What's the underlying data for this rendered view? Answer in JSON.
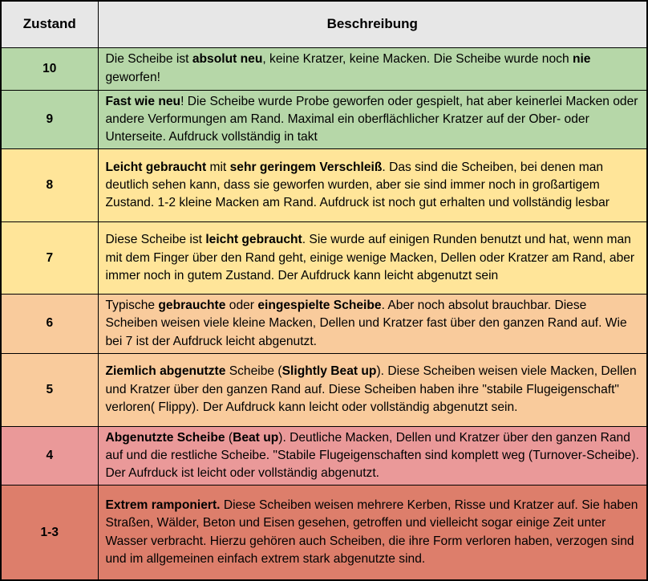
{
  "table": {
    "headers": [
      {
        "label": "Zustand"
      },
      {
        "label": "Beschreibung"
      }
    ],
    "header_bg": "#e7e7e7",
    "border_color": "#000000",
    "text_color": "#000000",
    "rows": [
      {
        "zustand": "10",
        "bg": "#b6d7a8",
        "height": 53,
        "segments": [
          {
            "text": "Die Scheibe ist ",
            "bold": false
          },
          {
            "text": "absolut neu",
            "bold": true
          },
          {
            "text": ", keine Kratzer, keine Macken. Die Scheibe wurde noch ",
            "bold": false
          },
          {
            "text": "nie",
            "bold": true
          },
          {
            "text": " geworfen!",
            "bold": false
          }
        ]
      },
      {
        "zustand": "9",
        "bg": "#b6d7a8",
        "height": 70,
        "segments": [
          {
            "text": "Fast wie neu",
            "bold": true
          },
          {
            "text": "! Die Scheibe wurde Probe geworfen oder gespielt, hat aber keinerlei Macken oder andere Verformungen am Rand. Maximal ein oberflächlicher Kratzer auf der Ober- oder Unterseite. Aufdruck vollständig in takt",
            "bold": false
          }
        ]
      },
      {
        "zustand": "8",
        "bg": "#ffe599",
        "height": 91,
        "segments": [
          {
            "text": "Leicht gebraucht",
            "bold": true
          },
          {
            "text": " mit ",
            "bold": false
          },
          {
            "text": "sehr geringem Verschleiß",
            "bold": true
          },
          {
            "text": ". Das sind die Scheiben, bei denen man deutlich sehen kann, dass sie geworfen wurden, aber sie sind immer noch in großartigem Zustand. 1-2 kleine Macken am Rand. Aufdruck ist noch gut erhalten und vollständig lesbar",
            "bold": false
          }
        ]
      },
      {
        "zustand": "7",
        "bg": "#ffe599",
        "height": 90,
        "segments": [
          {
            "text": "Diese Scheibe ist ",
            "bold": false
          },
          {
            "text": "leicht gebraucht",
            "bold": true
          },
          {
            "text": ". Sie wurde auf einigen Runden benutzt und hat, wenn man mit dem Finger über den Rand geht, einige wenige Macken, Dellen oder Kratzer am Rand, aber immer noch in gutem Zustand. Der Aufdruck kann leicht abgenutzt sein",
            "bold": false
          }
        ]
      },
      {
        "zustand": "6",
        "bg": "#f9cb9c",
        "height": 71,
        "segments": [
          {
            "text": "Typische ",
            "bold": false
          },
          {
            "text": "gebrauchte",
            "bold": true
          },
          {
            "text": " oder ",
            "bold": false
          },
          {
            "text": "eingespielte Scheibe",
            "bold": true
          },
          {
            "text": ". Aber noch absolut brauchbar. Diese Scheiben weisen viele kleine Macken, Dellen und Kratzer fast über den ganzen Rand auf. Wie bei 7 ist der Aufdruck leicht abgenutzt.",
            "bold": false
          }
        ]
      },
      {
        "zustand": "5",
        "bg": "#f9cb9c",
        "height": 91,
        "segments": [
          {
            "text": "Ziemlich abgenutzte",
            "bold": true
          },
          {
            "text": " Scheibe (",
            "bold": false
          },
          {
            "text": "Slightly Beat up",
            "bold": true
          },
          {
            "text": "). Diese Scheiben weisen viele Macken, Dellen und Kratzer über den ganzen Rand auf. Diese Scheiben haben ihre \"stabile Flugeigenschaft\" verloren( Flippy). Der Aufdruck kann leicht oder vollständig abgenutzt sein.",
            "bold": false
          }
        ]
      },
      {
        "zustand": "4",
        "bg": "#ea9999",
        "height": 71,
        "segments": [
          {
            "text": "Abgenutzte Scheibe",
            "bold": true
          },
          {
            "text": " (",
            "bold": false
          },
          {
            "text": "Beat up",
            "bold": true
          },
          {
            "text": "). Deutliche  Macken, Dellen und Kratzer über den ganzen Rand auf und die restliche Scheibe. \"Stabile Flugeigenschaften sind komplett weg (Turnover-Scheibe). Der Aufrduck ist leicht oder vollständig abgenutzt.",
            "bold": false
          }
        ]
      },
      {
        "zustand": "1-3",
        "bg": "#dd7e6b",
        "height": 118,
        "segments": [
          {
            "text": "Extrem ramponiert.",
            "bold": true
          },
          {
            "text": " Diese Scheiben weisen mehrere Kerben, Risse und Kratzer auf. Sie haben Straßen, Wälder, Beton und Eisen gesehen, getroffen und vielleicht sogar einige Zeit unter Wasser verbracht. Hierzu gehören auch Scheiben, die ihre Form verloren haben, verzogen sind und im allgemeinen einfach extrem stark abgenutzte sind.",
            "bold": false
          }
        ]
      }
    ]
  }
}
